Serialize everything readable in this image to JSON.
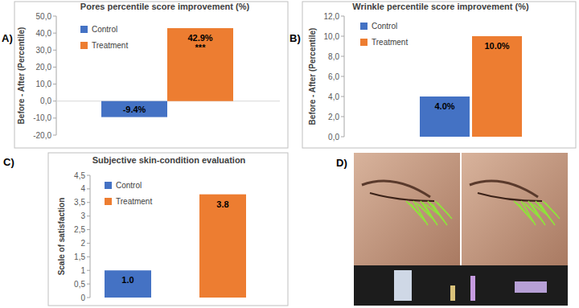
{
  "chart_data": [
    {
      "type": "bar",
      "panel_label": "A)",
      "title": "Pores percentile score improvement (%)",
      "ylabel": "Before - After (Percentile)",
      "categories": [
        "Control",
        "Treatment"
      ],
      "values": [
        -9.4,
        42.9
      ],
      "value_labels": [
        "-9.4%",
        "42.9%"
      ],
      "colors": [
        "#4472c4",
        "#ed7d31"
      ],
      "ylim": [
        -20,
        50
      ],
      "yticks": [
        {
          "value": -20,
          "label": "-20,0"
        },
        {
          "value": -10,
          "label": "-10,0"
        },
        {
          "value": 0,
          "label": "0,0"
        },
        {
          "value": 10,
          "label": "10,0"
        },
        {
          "value": 20,
          "label": "20,0"
        },
        {
          "value": 30,
          "label": "30,0"
        },
        {
          "value": 40,
          "label": "40,0"
        },
        {
          "value": 50,
          "label": "50,0"
        }
      ],
      "annotations": [
        {
          "text": "***",
          "category": "Treatment"
        }
      ],
      "grid": false,
      "legend": "top-left",
      "data_labels": true,
      "tick_labels": "y"
    },
    {
      "type": "bar",
      "panel_label": "B)",
      "title": "Wrinkle percentile score improvement (%)",
      "ylabel": "Before - After (Percentile)",
      "categories": [
        "Control",
        "Treatment"
      ],
      "values": [
        4.0,
        10.0
      ],
      "value_labels": [
        "4.0%",
        "10.0%"
      ],
      "colors": [
        "#4472c4",
        "#ed7d31"
      ],
      "ylim": [
        0,
        12
      ],
      "yticks": [
        {
          "value": 0,
          "label": "0,0"
        },
        {
          "value": 2,
          "label": "2,0"
        },
        {
          "value": 4,
          "label": "4,0"
        },
        {
          "value": 6,
          "label": "6,0"
        },
        {
          "value": 8,
          "label": "8,0"
        },
        {
          "value": 10,
          "label": "10,0"
        },
        {
          "value": 12,
          "label": "12,0"
        }
      ],
      "grid": false,
      "legend": "top-left",
      "data_labels": true,
      "tick_labels": "y"
    },
    {
      "type": "bar",
      "panel_label": "C)",
      "title": "Subjective skin-condition evaluation",
      "ylabel": "Scale of satisfaction",
      "categories": [
        "Control",
        "Treatment"
      ],
      "values": [
        1.0,
        3.8
      ],
      "value_labels": [
        "1.0",
        "3.8"
      ],
      "colors": [
        "#4472c4",
        "#ed7d31"
      ],
      "ylim": [
        0,
        4.5
      ],
      "yticks": [
        0,
        {
          "value": 0.5,
          "label": "0,5"
        },
        1,
        {
          "value": 1.5,
          "label": "1,5"
        },
        2,
        {
          "value": 2.5,
          "label": "2,5"
        },
        3,
        {
          "value": 3.5,
          "label": "3,5"
        },
        4,
        {
          "value": 4.5,
          "label": "4,5"
        }
      ],
      "grid": false,
      "legend": "top-left",
      "data_labels": true,
      "tick_labels": "y"
    }
  ],
  "image_panel": {
    "label": "D)"
  }
}
